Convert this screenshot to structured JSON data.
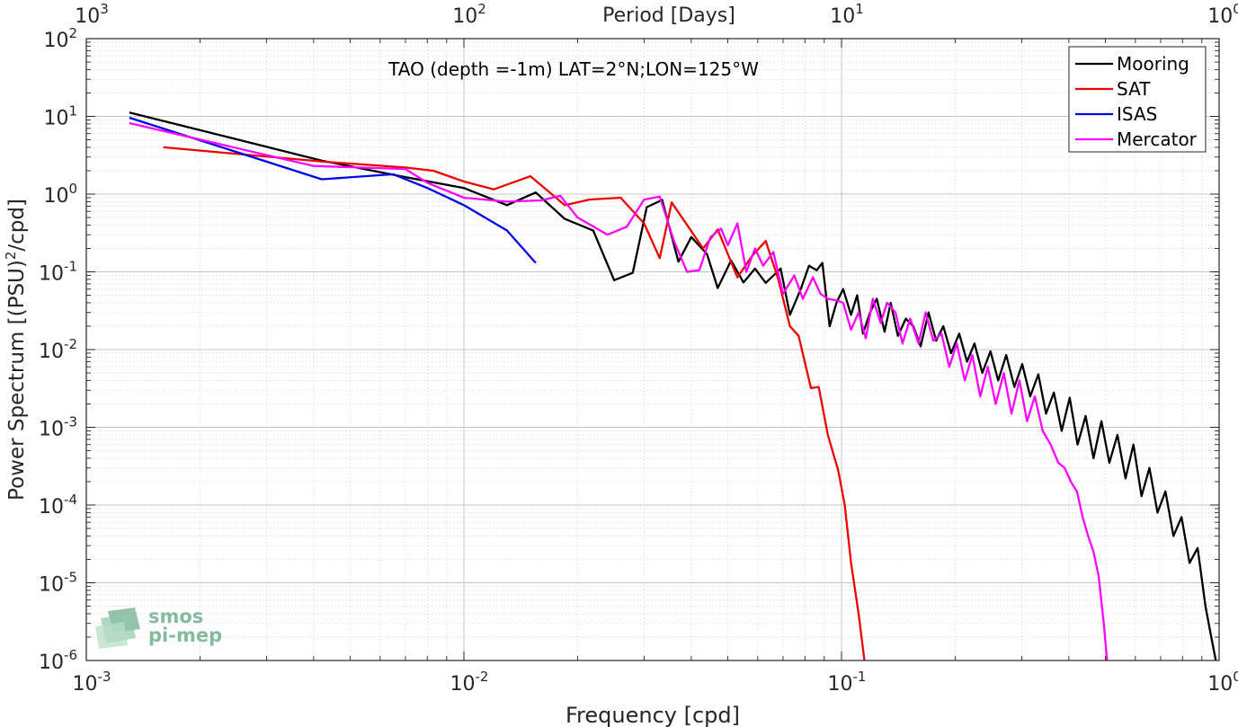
{
  "chart_data": {
    "type": "line",
    "title": "TAO (depth =-1m) LAT=2°N;LON=125°W",
    "xlabel": "Frequency [cpd]",
    "ylabel": "Power Spectrum [(PSU)²/cpd]",
    "ylabel_parts": {
      "main": "Power Spectrum [(PSU)",
      "sup": "2",
      "tail": "/cpd]"
    },
    "top_xlabel": "Period [Days]",
    "x_scale": "log",
    "y_scale": "log",
    "xlim": [
      0.001,
      1
    ],
    "ylim": [
      1e-06,
      100
    ],
    "grid": true,
    "legend_position": "top-right",
    "x_ticks": [
      {
        "base": "10",
        "exp": "-3"
      },
      {
        "base": "10",
        "exp": "-2"
      },
      {
        "base": "10",
        "exp": "-1"
      },
      {
        "base": "10",
        "exp": "0"
      }
    ],
    "y_ticks": [
      {
        "base": "10",
        "exp": "-6"
      },
      {
        "base": "10",
        "exp": "-5"
      },
      {
        "base": "10",
        "exp": "-4"
      },
      {
        "base": "10",
        "exp": "-3"
      },
      {
        "base": "10",
        "exp": "-2"
      },
      {
        "base": "10",
        "exp": "-1"
      },
      {
        "base": "10",
        "exp": "0"
      },
      {
        "base": "10",
        "exp": "1"
      },
      {
        "base": "10",
        "exp": "2"
      }
    ],
    "top_ticks": [
      {
        "base": "10",
        "exp": "3"
      },
      {
        "base": "10",
        "exp": "2"
      },
      {
        "base": "10",
        "exp": "1"
      },
      {
        "base": "10",
        "exp": "0"
      }
    ],
    "series": [
      {
        "name": "Mooring",
        "color": "#000000",
        "points": [
          [
            0.0013,
            11.2
          ],
          [
            0.0042,
            2.7
          ],
          [
            0.0068,
            1.7
          ],
          [
            0.01,
            1.2
          ],
          [
            0.013,
            0.72
          ],
          [
            0.0155,
            1.05
          ],
          [
            0.0185,
            0.48
          ],
          [
            0.022,
            0.34
          ],
          [
            0.025,
            0.078
          ],
          [
            0.028,
            0.097
          ],
          [
            0.0305,
            0.68
          ],
          [
            0.0335,
            0.84
          ],
          [
            0.037,
            0.135
          ],
          [
            0.04,
            0.28
          ],
          [
            0.044,
            0.17
          ],
          [
            0.047,
            0.062
          ],
          [
            0.051,
            0.14
          ],
          [
            0.055,
            0.073
          ],
          [
            0.059,
            0.11
          ],
          [
            0.063,
            0.072
          ],
          [
            0.069,
            0.11
          ],
          [
            0.073,
            0.028
          ],
          [
            0.078,
            0.06
          ],
          [
            0.082,
            0.12
          ],
          [
            0.086,
            0.105
          ],
          [
            0.089,
            0.13
          ],
          [
            0.093,
            0.02
          ],
          [
            0.097,
            0.04
          ],
          [
            0.101,
            0.06
          ],
          [
            0.106,
            0.028
          ],
          [
            0.11,
            0.05
          ],
          [
            0.114,
            0.016
          ],
          [
            0.119,
            0.03
          ],
          [
            0.124,
            0.045
          ],
          [
            0.13,
            0.017
          ],
          [
            0.135,
            0.04
          ],
          [
            0.141,
            0.015
          ],
          [
            0.148,
            0.025
          ],
          [
            0.155,
            0.02
          ],
          [
            0.162,
            0.011
          ],
          [
            0.17,
            0.03
          ],
          [
            0.178,
            0.013
          ],
          [
            0.186,
            0.02
          ],
          [
            0.195,
            0.009
          ],
          [
            0.205,
            0.016
          ],
          [
            0.215,
            0.007
          ],
          [
            0.225,
            0.012
          ],
          [
            0.236,
            0.005
          ],
          [
            0.248,
            0.0095
          ],
          [
            0.26,
            0.004
          ],
          [
            0.273,
            0.0085
          ],
          [
            0.287,
            0.0033
          ],
          [
            0.301,
            0.0065
          ],
          [
            0.316,
            0.0025
          ],
          [
            0.332,
            0.0048
          ],
          [
            0.348,
            0.0015
          ],
          [
            0.365,
            0.0028
          ],
          [
            0.383,
            0.0009
          ],
          [
            0.402,
            0.0024
          ],
          [
            0.422,
            0.0006
          ],
          [
            0.443,
            0.0014
          ],
          [
            0.465,
            0.0004
          ],
          [
            0.488,
            0.0012
          ],
          [
            0.512,
            0.00035
          ],
          [
            0.538,
            0.0008
          ],
          [
            0.565,
            0.00022
          ],
          [
            0.593,
            0.0006
          ],
          [
            0.623,
            0.00013
          ],
          [
            0.654,
            0.0003
          ],
          [
            0.687,
            8e-05
          ],
          [
            0.721,
            0.00015
          ],
          [
            0.757,
            4e-05
          ],
          [
            0.795,
            7e-05
          ],
          [
            0.835,
            1.8e-05
          ],
          [
            0.877,
            2.8e-05
          ],
          [
            0.92,
            5e-06
          ],
          [
            0.95,
            2.2e-06
          ],
          [
            0.98,
            1e-06
          ]
        ]
      },
      {
        "name": "SAT",
        "color": "#ee0000",
        "points": [
          [
            0.0016,
            4.0
          ],
          [
            0.0043,
            2.6
          ],
          [
            0.007,
            2.2
          ],
          [
            0.0083,
            2.0
          ],
          [
            0.01,
            1.45
          ],
          [
            0.012,
            1.15
          ],
          [
            0.015,
            1.7
          ],
          [
            0.0185,
            0.72
          ],
          [
            0.0215,
            0.85
          ],
          [
            0.026,
            0.9
          ],
          [
            0.03,
            0.42
          ],
          [
            0.033,
            0.15
          ],
          [
            0.0355,
            0.78
          ],
          [
            0.043,
            0.2
          ],
          [
            0.047,
            0.35
          ],
          [
            0.053,
            0.085
          ],
          [
            0.058,
            0.16
          ],
          [
            0.063,
            0.25
          ],
          [
            0.068,
            0.08
          ],
          [
            0.073,
            0.02
          ],
          [
            0.077,
            0.015
          ],
          [
            0.083,
            0.0032
          ],
          [
            0.087,
            0.0033
          ],
          [
            0.092,
            0.0008
          ],
          [
            0.098,
            0.00028
          ],
          [
            0.102,
            0.0001
          ],
          [
            0.106,
            1.8e-05
          ],
          [
            0.111,
            4e-06
          ],
          [
            0.115,
            1e-06
          ]
        ]
      },
      {
        "name": "ISAS",
        "color": "#0000ee",
        "points": [
          [
            0.0013,
            9.6
          ],
          [
            0.0042,
            1.55
          ],
          [
            0.0065,
            1.8
          ],
          [
            0.008,
            1.2
          ],
          [
            0.01,
            0.72
          ],
          [
            0.013,
            0.34
          ],
          [
            0.0155,
            0.13
          ]
        ]
      },
      {
        "name": "Mercator",
        "color": "#ff00ff",
        "points": [
          [
            0.0013,
            8.2
          ],
          [
            0.004,
            2.3
          ],
          [
            0.007,
            2.1
          ],
          [
            0.008,
            1.4
          ],
          [
            0.01,
            0.9
          ],
          [
            0.013,
            0.8
          ],
          [
            0.016,
            0.83
          ],
          [
            0.018,
            0.95
          ],
          [
            0.02,
            0.5
          ],
          [
            0.024,
            0.3
          ],
          [
            0.027,
            0.38
          ],
          [
            0.03,
            0.85
          ],
          [
            0.033,
            0.93
          ],
          [
            0.036,
            0.25
          ],
          [
            0.039,
            0.1
          ],
          [
            0.042,
            0.105
          ],
          [
            0.045,
            0.28
          ],
          [
            0.048,
            0.36
          ],
          [
            0.05,
            0.22
          ],
          [
            0.053,
            0.42
          ],
          [
            0.056,
            0.1
          ],
          [
            0.059,
            0.2
          ],
          [
            0.062,
            0.12
          ],
          [
            0.066,
            0.18
          ],
          [
            0.07,
            0.052
          ],
          [
            0.075,
            0.09
          ],
          [
            0.079,
            0.045
          ],
          [
            0.084,
            0.085
          ],
          [
            0.088,
            0.052
          ],
          [
            0.092,
            0.045
          ],
          [
            0.097,
            0.043
          ],
          [
            0.101,
            0.04
          ],
          [
            0.106,
            0.018
          ],
          [
            0.111,
            0.03
          ],
          [
            0.116,
            0.014
          ],
          [
            0.121,
            0.045
          ],
          [
            0.127,
            0.022
          ],
          [
            0.132,
            0.04
          ],
          [
            0.139,
            0.03
          ],
          [
            0.145,
            0.012
          ],
          [
            0.152,
            0.025
          ],
          [
            0.16,
            0.012
          ],
          [
            0.167,
            0.03
          ],
          [
            0.175,
            0.013
          ],
          [
            0.184,
            0.016
          ],
          [
            0.193,
            0.006
          ],
          [
            0.202,
            0.012
          ],
          [
            0.212,
            0.004
          ],
          [
            0.222,
            0.0085
          ],
          [
            0.233,
            0.0025
          ],
          [
            0.244,
            0.006
          ],
          [
            0.256,
            0.002
          ],
          [
            0.269,
            0.005
          ],
          [
            0.282,
            0.0015
          ],
          [
            0.296,
            0.004
          ],
          [
            0.31,
            0.0012
          ],
          [
            0.325,
            0.0025
          ],
          [
            0.341,
            0.0009
          ],
          [
            0.358,
            0.0006
          ],
          [
            0.375,
            0.00035
          ],
          [
            0.39,
            0.0003
          ],
          [
            0.405,
            0.0002
          ],
          [
            0.42,
            0.00015
          ],
          [
            0.435,
            7e-05
          ],
          [
            0.45,
            4e-05
          ],
          [
            0.465,
            2.5e-05
          ],
          [
            0.48,
            1.2e-05
          ],
          [
            0.495,
            3e-06
          ],
          [
            0.505,
            1e-06
          ]
        ]
      }
    ]
  },
  "watermark": {
    "line1": "smos",
    "line2": "pi-mep"
  }
}
